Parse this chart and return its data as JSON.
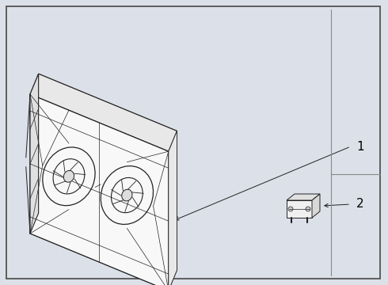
{
  "bg_color": "#dce0e8",
  "border_color": "#555555",
  "line_color": "#222222",
  "white": "#ffffff",
  "label1": "1",
  "label2": "2",
  "fig_width": 4.9,
  "fig_height": 3.6,
  "dpi": 100
}
